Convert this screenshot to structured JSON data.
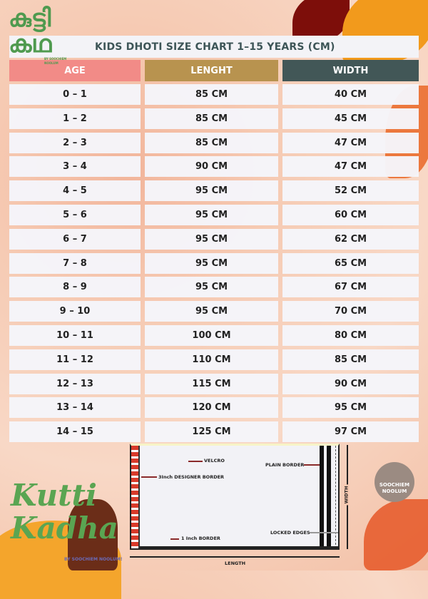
{
  "logo": {
    "malayalam_text": "കുട്ടി കഥ",
    "tagline": "BY SOOCHIEM NOOLUM"
  },
  "title": "KIDS DHOTI SIZE CHART  1–15 YEARS   (CM)",
  "headers": {
    "age": "AGE",
    "length": "LENGHT",
    "width": "WIDTH"
  },
  "colors": {
    "age_header": "#f28b87",
    "length_header": "#b8934f",
    "width_header": "#425757",
    "logo_green": "#4f9a4f"
  },
  "rows": [
    {
      "age": "0 – 1",
      "length": "85 CM",
      "width": "40 CM"
    },
    {
      "age": "1 – 2",
      "length": "85 CM",
      "width": "45 CM"
    },
    {
      "age": "2 – 3",
      "length": "85 CM",
      "width": "47 CM"
    },
    {
      "age": "3 – 4",
      "length": "90 CM",
      "width": "47 CM"
    },
    {
      "age": "4 – 5",
      "length": "95 CM",
      "width": "52 CM"
    },
    {
      "age": "5 – 6",
      "length": "95 CM",
      "width": "60 CM"
    },
    {
      "age": "6 – 7",
      "length": "95 CM",
      "width": "62  CM"
    },
    {
      "age": "7 – 8",
      "length": "95 CM",
      "width": "65 CM"
    },
    {
      "age": "8 – 9",
      "length": "95 CM",
      "width": "67 CM"
    },
    {
      "age": "9 – 10",
      "length": "95 CM",
      "width": "70 CM"
    },
    {
      "age": "10 – 11",
      "length": "100 CM",
      "width": "80 CM"
    },
    {
      "age": "11 – 12",
      "length": "110 CM",
      "width": "85 CM"
    },
    {
      "age": "12 – 13",
      "length": "115 CM",
      "width": "90 CM"
    },
    {
      "age": "13 – 14",
      "length": "120 CM",
      "width": "95 CM"
    },
    {
      "age": "14 – 15",
      "length": "125 CM",
      "width": "97 CM"
    }
  ],
  "diagram": {
    "velcro": "VELCRO",
    "designer_border": "3Inch DESIGNER BORDER",
    "plain_border": "PLAIN BORDER",
    "one_inch_border": "1 Inch BORDER",
    "locked_edges": "LOCKED EDGES",
    "length": "LENGTH",
    "width": "WIDTH"
  },
  "footer": {
    "brand": "Kutti Kadha",
    "by": "BY SOOCHIEM NOOLUM!",
    "badge_line1": "SOOCHIEM",
    "badge_line2": "NOOLUM"
  }
}
